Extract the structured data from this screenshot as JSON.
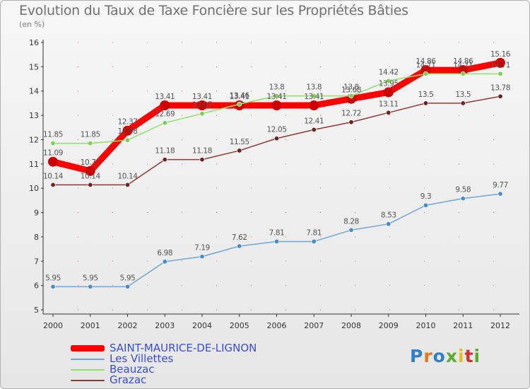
{
  "title": "Evolution du Taux de Taxe Foncière sur les Propriétés Bâties",
  "subtitle": "(en %)",
  "logo": {
    "text": "Proxiti",
    "letter_colors": [
      "#2f7fc8",
      "#e07a1e",
      "#2f7fc8",
      "#5aae2d",
      "#e0c21e",
      "#d03030",
      "#5aae2d"
    ]
  },
  "colors": {
    "grid_dash": "#cc0000",
    "axis": "#333333",
    "tick_text": "#333333",
    "label_text": "#555555",
    "legend_text": "#3a4dd6"
  },
  "chart_data": {
    "type": "line",
    "title": "Evolution du Taux de Taxe Foncière sur les Propriétés Bâties",
    "ylabel": "(en %)",
    "xlabel": "",
    "x": [
      "2000",
      "2001",
      "2002",
      "2003",
      "2004",
      "2005",
      "2006",
      "2007",
      "2008",
      "2009",
      "2010",
      "2011",
      "2012"
    ],
    "ylim": [
      5,
      16
    ],
    "yticks": [
      "5",
      "6",
      "7",
      "8",
      "9",
      "10",
      "11",
      "12",
      "13",
      "14",
      "15",
      "16"
    ],
    "legend_position": "bottom-left",
    "series": [
      {
        "name": "SAINT-MAURICE-DE-LIGNON",
        "color": "#ff0000",
        "marker": "#cc0000",
        "width": 9,
        "radius": 7,
        "values": [
          11.09,
          10.71,
          12.37,
          13.41,
          13.41,
          13.41,
          13.41,
          13.41,
          13.68,
          13.95,
          14.86,
          14.86,
          15.16
        ],
        "labels": [
          "11.09",
          "10.71",
          "12.37",
          "13.41",
          "13.41",
          "13.41",
          "13.41",
          "13.41",
          "13.68",
          "13.95",
          "14.86",
          "14.86",
          "15.16"
        ]
      },
      {
        "name": "Les Villettes",
        "color": "#6fa6d6",
        "marker": "#4a8cc8",
        "width": 1.5,
        "radius": 3.2,
        "values": [
          5.95,
          5.95,
          5.95,
          6.98,
          7.19,
          7.62,
          7.81,
          7.81,
          8.28,
          8.53,
          9.3,
          9.58,
          9.77
        ],
        "labels": [
          "5.95",
          "5.95",
          "5.95",
          "6.98",
          "7.19",
          "7.62",
          "7.81",
          "7.81",
          "8.28",
          "8.53",
          "9.3",
          "9.58",
          "9.77"
        ]
      },
      {
        "name": "Beauzac",
        "color": "#90e070",
        "marker": "#7ccf4a",
        "width": 1.5,
        "radius": 3.2,
        "values": [
          11.85,
          11.85,
          11.98,
          12.69,
          13.07,
          13.46,
          13.8,
          13.8,
          13.8,
          14.42,
          14.71,
          14.71,
          14.71
        ],
        "labels": [
          "11.85",
          "11.85",
          "11.98",
          "12.69",
          "13.07",
          "13.46",
          "13.8",
          "13.8",
          "13.8",
          "14.42",
          "14.71",
          "14.71",
          "14.71"
        ]
      },
      {
        "name": "Grazac",
        "color": "#8b3a3a",
        "marker": "#6b2222",
        "width": 1.5,
        "radius": 3.2,
        "values": [
          10.14,
          10.14,
          10.14,
          11.18,
          11.18,
          11.55,
          12.05,
          12.41,
          12.72,
          13.11,
          13.5,
          13.5,
          13.78
        ],
        "labels": [
          "10.14",
          "10.14",
          "10.14",
          "11.18",
          "11.18",
          "11.55",
          "12.05",
          "12.41",
          "12.72",
          "13.11",
          "13.5",
          "13.5",
          "13.78"
        ]
      }
    ]
  }
}
